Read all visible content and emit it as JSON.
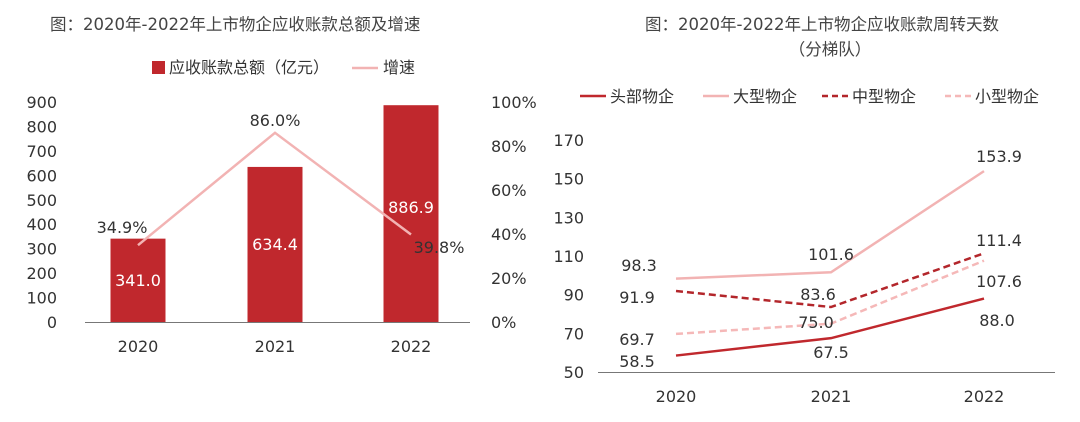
{
  "chart_data": [
    {
      "type": "bar",
      "title": "图：2020年-2022年上市物企应收账款总额及增速",
      "categories": [
        "2020",
        "2021",
        "2022"
      ],
      "series": [
        {
          "name": "应收账款总额（亿元）",
          "type": "bar",
          "axis": "left",
          "color": "#c0282d",
          "values": [
            341.0,
            634.4,
            886.9
          ],
          "labels": [
            "341.0",
            "634.4",
            "886.9"
          ]
        },
        {
          "name": "增速",
          "type": "line",
          "axis": "right",
          "color": "#f2b3b3",
          "values": [
            34.9,
            86.0,
            39.8
          ],
          "labels": [
            "34.9%",
            "86.0%",
            "39.8%"
          ]
        }
      ],
      "ylim": [
        0,
        900
      ],
      "yticks": [
        "0",
        "100",
        "200",
        "300",
        "400",
        "500",
        "600",
        "700",
        "800",
        "900"
      ],
      "y2lim": [
        0,
        100
      ],
      "y2ticks": [
        "0%",
        "20%",
        "40%",
        "60%",
        "80%",
        "100%"
      ],
      "legend": "top"
    },
    {
      "type": "line",
      "title": "图：2020年-2022年上市物企应收账款周转天数",
      "subtitle": "（分梯队）",
      "x": [
        "2020",
        "2021",
        "2022"
      ],
      "series": [
        {
          "name": "头部物企",
          "color": "#c0282d",
          "dash": "solid",
          "values": [
            58.5,
            67.5,
            88.0
          ],
          "labels": [
            "58.5",
            "67.5",
            "88.0"
          ]
        },
        {
          "name": "大型物企",
          "color": "#f2b3b3",
          "dash": "solid",
          "values": [
            98.3,
            101.6,
            153.9
          ],
          "labels": [
            "98.3",
            "101.6",
            "153.9"
          ]
        },
        {
          "name": "中型物企",
          "color": "#b3262b",
          "dash": "dashed",
          "values": [
            91.9,
            83.6,
            111.4
          ],
          "labels": [
            "91.9",
            "83.6",
            "111.4"
          ]
        },
        {
          "name": "小型物企",
          "color": "#f5b8b8",
          "dash": "dashed",
          "values": [
            69.7,
            75.0,
            107.6
          ],
          "labels": [
            "69.7",
            "75.0",
            "107.6"
          ]
        }
      ],
      "ylim": [
        50,
        170
      ],
      "yticks": [
        "50",
        "70",
        "90",
        "110",
        "130",
        "150",
        "170"
      ],
      "legend": "top"
    }
  ]
}
